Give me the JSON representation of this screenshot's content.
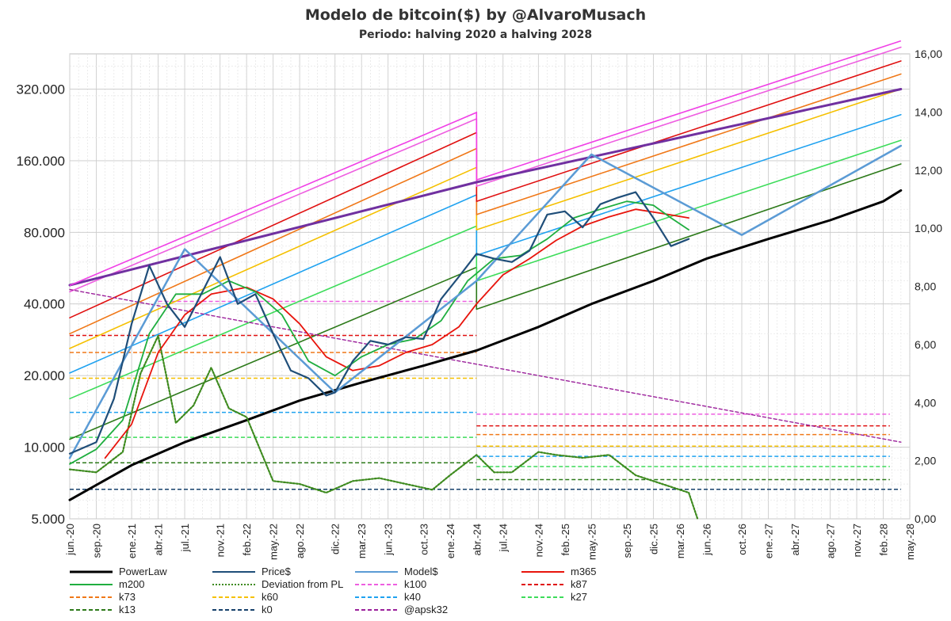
{
  "chart_data": {
    "type": "line",
    "title": "Modelo de bitcoin($) by @AlvaroMusach",
    "subtitle": "Periodo: halving 2020 a halving 2028",
    "x_ticks": [
      "jun.-20",
      "sep.-20",
      "ene.-21",
      "abr.-21",
      "jul.-21",
      "nov.-21",
      "feb.-22",
      "may.-22",
      "ago.-22",
      "dic.-22",
      "mar.-23",
      "jun.-23",
      "oct.-23",
      "ene.-24",
      "abr.-24",
      "jul.-24",
      "nov.-24",
      "feb.-25",
      "may.-25",
      "sep.-25",
      "dic.-25",
      "mar.-26",
      "jun.-26",
      "oct.-26",
      "ene.-27",
      "abr.-27",
      "ago.-27",
      "nov.-27",
      "feb.-28",
      "may.-28"
    ],
    "y_left_ticks": [
      "5.000",
      "10.000",
      "20.000",
      "40.000",
      "80.000",
      "160.000",
      "320.000"
    ],
    "y_left_values": [
      5000,
      10000,
      20000,
      40000,
      80000,
      160000,
      320000
    ],
    "y_left_scale": "log",
    "y_left_range": [
      5000,
      450000
    ],
    "y_right_ticks": [
      "0,00",
      "2,00",
      "4,00",
      "6,00",
      "8,00",
      "10,00",
      "12,00",
      "14,00",
      "16,00"
    ],
    "y_right_range": [
      0,
      16
    ],
    "grid": true,
    "legend_position": "bottom",
    "colors": {
      "PowerLaw": "#000000",
      "Price$": "#1f4e79",
      "Model$": "#5b9bd5",
      "m365": "#e8140c",
      "m200": "#1fae3f",
      "Deviation from PL": "#3d8a1e",
      "k100": "#ee5ee0",
      "k87": "#e01010",
      "k73": "#f07818",
      "k60": "#f5c000",
      "k40": "#1fa2f0",
      "k27": "#3ddc5a",
      "k13": "#2d7a1a",
      "k0": "#16406b",
      "@apsk32": "#9b209b",
      "k_top": "#f040e6",
      "envelope": "#7030a0"
    },
    "legend": [
      {
        "name": "PowerLaw",
        "style": "solid"
      },
      {
        "name": "Price$",
        "style": "solid"
      },
      {
        "name": "Model$",
        "style": "solid"
      },
      {
        "name": "m365",
        "style": "solid"
      },
      {
        "name": "m200",
        "style": "solid"
      },
      {
        "name": "Deviation from PL",
        "style": "dotted"
      },
      {
        "name": "k100",
        "style": "dashed"
      },
      {
        "name": "k87",
        "style": "dashed"
      },
      {
        "name": "k73",
        "style": "dashed"
      },
      {
        "name": "k60",
        "style": "dashed"
      },
      {
        "name": "k40",
        "style": "dashed"
      },
      {
        "name": "k27",
        "style": "dashed"
      },
      {
        "name": "k13",
        "style": "dashed"
      },
      {
        "name": "k0",
        "style": "dashed"
      },
      {
        "name": "@apsk32",
        "style": "dashed"
      }
    ],
    "series": [
      {
        "name": "PowerLaw",
        "x": [
          "jun.-20",
          "ene.-21",
          "jul.-21",
          "feb.-22",
          "ago.-22",
          "mar.-23",
          "oct.-23",
          "abr.-24",
          "nov.-24",
          "may.-25",
          "dic.-25",
          "jun.-26",
          "ene.-27",
          "ago.-27",
          "feb.-28",
          "abr.-28"
        ],
        "y": [
          6000,
          8400,
          10500,
          13000,
          15700,
          18700,
          22000,
          25500,
          32000,
          40000,
          50000,
          62000,
          75000,
          90000,
          108000,
          120000
        ]
      },
      {
        "name": "Price$",
        "x": [
          "jun.-20",
          "sep.-20",
          "nov.-20",
          "ene.-21",
          "mar.-21",
          "may.-21",
          "jul.-21",
          "sep.-21",
          "nov.-21",
          "ene.-22",
          "mar.-22",
          "may.-22",
          "jul.-22",
          "sep.-22",
          "nov.-22",
          "dic.-22",
          "feb.-23",
          "abr.-23",
          "jun.-23",
          "ago.-23",
          "oct.-23",
          "dic.-23",
          "feb.-24",
          "abr.-24",
          "jun.-24",
          "ago.-24",
          "oct.-24",
          "dic.-24",
          "feb.-25",
          "abr.-25",
          "jun.-25",
          "ago.-25",
          "oct.-25",
          "dic.-25",
          "feb.-26",
          "abr.-26"
        ],
        "y": [
          9400,
          10500,
          16000,
          33000,
          58000,
          40000,
          32000,
          45000,
          63000,
          40000,
          44000,
          30000,
          21000,
          19500,
          16500,
          17000,
          23000,
          28000,
          27000,
          29000,
          28500,
          42000,
          52000,
          65000,
          62000,
          60000,
          67000,
          95000,
          98000,
          84000,
          105000,
          112000,
          118000,
          92000,
          70000,
          75000
        ]
      },
      {
        "name": "Model$",
        "x": [
          "jun.-20",
          "jul.-21",
          "dic.-22",
          "abr.-24",
          "may.-25",
          "oct.-26",
          "abr.-28"
        ],
        "y": [
          9000,
          68000,
          17000,
          50000,
          170000,
          78000,
          185000
        ]
      },
      {
        "name": "m365",
        "x": [
          "oct.-20",
          "ene.-21",
          "abr.-21",
          "jul.-21",
          "oct.-21",
          "feb.-22",
          "may.-22",
          "ago.-22",
          "nov.-22",
          "feb.-23",
          "may.-23",
          "ago.-23",
          "nov.-23",
          "feb.-24",
          "abr.-24",
          "jul.-24",
          "oct.-24",
          "ene.-25",
          "abr.-25",
          "jul.-25",
          "oct.-25",
          "ene.-26",
          "abr.-26"
        ],
        "y": [
          9000,
          12500,
          25000,
          36000,
          44000,
          47000,
          42000,
          33000,
          24000,
          21000,
          22000,
          25000,
          27000,
          32000,
          40000,
          53000,
          62000,
          74000,
          85000,
          93000,
          100000,
          96000,
          92000
        ]
      },
      {
        "name": "m200",
        "x": [
          "jun.-20",
          "sep.-20",
          "dic.-20",
          "mar.-21",
          "jun.-21",
          "sep.-21",
          "dic.-21",
          "mar.-22",
          "jun.-22",
          "sep.-22",
          "dic.-22",
          "mar.-23",
          "jun.-23",
          "sep.-23",
          "dic.-23",
          "mar.-24",
          "jun.-24",
          "sep.-24",
          "dic.-24",
          "mar.-25",
          "jun.-25",
          "sep.-25",
          "dic.-25",
          "feb.-26",
          "abr.-26"
        ],
        "y": [
          8500,
          9800,
          13000,
          30000,
          44000,
          44000,
          50000,
          45000,
          36000,
          23000,
          20000,
          24000,
          27000,
          28500,
          34000,
          50000,
          62000,
          64000,
          75000,
          92000,
          100000,
          108000,
          104000,
          92000,
          82000
        ]
      },
      {
        "name": "Deviation from PL",
        "axis": "right",
        "x": [
          "jun.-20",
          "sep.-20",
          "dic.-20",
          "feb.-21",
          "abr.-21",
          "jun.-21",
          "ago.-21",
          "oct.-21",
          "dic.-21",
          "feb.-22",
          "may.-22",
          "ago.-22",
          "nov.-22",
          "feb.-23",
          "may.-23",
          "ago.-23",
          "nov.-23",
          "ene.-24",
          "abr.-24",
          "jun.-24",
          "ago.-24",
          "nov.-24",
          "ene.-25",
          "abr.-25",
          "jul.-25",
          "oct.-25",
          "ene.-26",
          "abr.-26",
          "may.-26"
        ],
        "y": [
          1.7,
          1.6,
          2.3,
          5.0,
          6.3,
          3.3,
          3.9,
          5.2,
          3.8,
          3.5,
          1.3,
          1.2,
          0.9,
          1.3,
          1.4,
          1.2,
          1.0,
          1.5,
          2.2,
          1.6,
          1.6,
          2.3,
          2.2,
          2.1,
          2.2,
          1.5,
          1.2,
          0.9,
          0.0
        ]
      },
      {
        "name": "@apsk32",
        "x": [
          "jun.-20",
          "abr.-28"
        ],
        "y": [
          46000,
          10500
        ]
      },
      {
        "name": "k100",
        "x": [
          "jun.-20",
          "abr.-24",
          "abr.-24",
          "abr.-28"
        ],
        "y": [
          45000,
          240000,
          125000,
          480000
        ]
      },
      {
        "name": "k87",
        "x": [
          "jun.-20",
          "abr.-24",
          "abr.-24",
          "abr.-28"
        ],
        "y": [
          35000,
          210000,
          108000,
          420000
        ]
      },
      {
        "name": "k73",
        "x": [
          "jun.-20",
          "abr.-24",
          "abr.-24",
          "abr.-28"
        ],
        "y": [
          30000,
          180000,
          95000,
          370000
        ]
      },
      {
        "name": "k60",
        "x": [
          "jun.-20",
          "abr.-24",
          "abr.-24",
          "abr.-28"
        ],
        "y": [
          26000,
          150000,
          82000,
          320000
        ]
      },
      {
        "name": "k40",
        "x": [
          "jun.-20",
          "abr.-24",
          "abr.-24",
          "abr.-28"
        ],
        "y": [
          20500,
          115000,
          64000,
          250000
        ]
      },
      {
        "name": "k27",
        "x": [
          "jun.-20",
          "abr.-24",
          "abr.-24",
          "abr.-28"
        ],
        "y": [
          16000,
          85000,
          50000,
          195000
        ]
      },
      {
        "name": "k13",
        "x": [
          "jun.-20",
          "abr.-24",
          "abr.-24",
          "abr.-28"
        ],
        "y": [
          10800,
          57000,
          38000,
          155000
        ]
      },
      {
        "name": "envelope",
        "x": [
          "jun.-20",
          "abr.-24",
          "abr.-28"
        ],
        "y": [
          48000,
          130000,
          320000
        ]
      }
    ],
    "thresholds": [
      {
        "name": "k100",
        "x": [
          "abr.-21",
          "abr.-24"
        ],
        "y": 41000,
        "x2": [
          "abr.-24",
          "abr.-28"
        ],
        "y2": 3.6
      },
      {
        "name": "k87",
        "x": [
          "jun.-20",
          "abr.-24"
        ],
        "y": 29500,
        "x2": [
          "abr.-24",
          "abr.-28"
        ],
        "y2": 3.2
      },
      {
        "name": "k73",
        "x": [
          "jun.-20",
          "abr.-24"
        ],
        "y": 25000,
        "x2": [
          "abr.-24",
          "abr.-28"
        ],
        "y2": 2.9
      },
      {
        "name": "k60",
        "x": [
          "jun.-20",
          "abr.-24"
        ],
        "y": 19500,
        "x2": [
          "abr.-24",
          "abr.-28"
        ],
        "y2": 2.5
      },
      {
        "name": "k40",
        "x": [
          "jun.-20",
          "abr.-24"
        ],
        "y": 14000,
        "x2": [
          "abr.-24",
          "abr.-28"
        ],
        "y2": 2.15
      },
      {
        "name": "k27",
        "x": [
          "jun.-20",
          "abr.-24"
        ],
        "y": 11000,
        "x2": [
          "abr.-24",
          "abr.-28"
        ],
        "y2": 1.8
      },
      {
        "name": "k13",
        "x": [
          "jun.-20",
          "abr.-24"
        ],
        "y": 8600,
        "x2": [
          "abr.-24",
          "abr.-28"
        ],
        "y2": 1.35
      },
      {
        "name": "k0",
        "x": [
          "jun.-20",
          "abr.-28"
        ],
        "y": 6650
      }
    ]
  }
}
